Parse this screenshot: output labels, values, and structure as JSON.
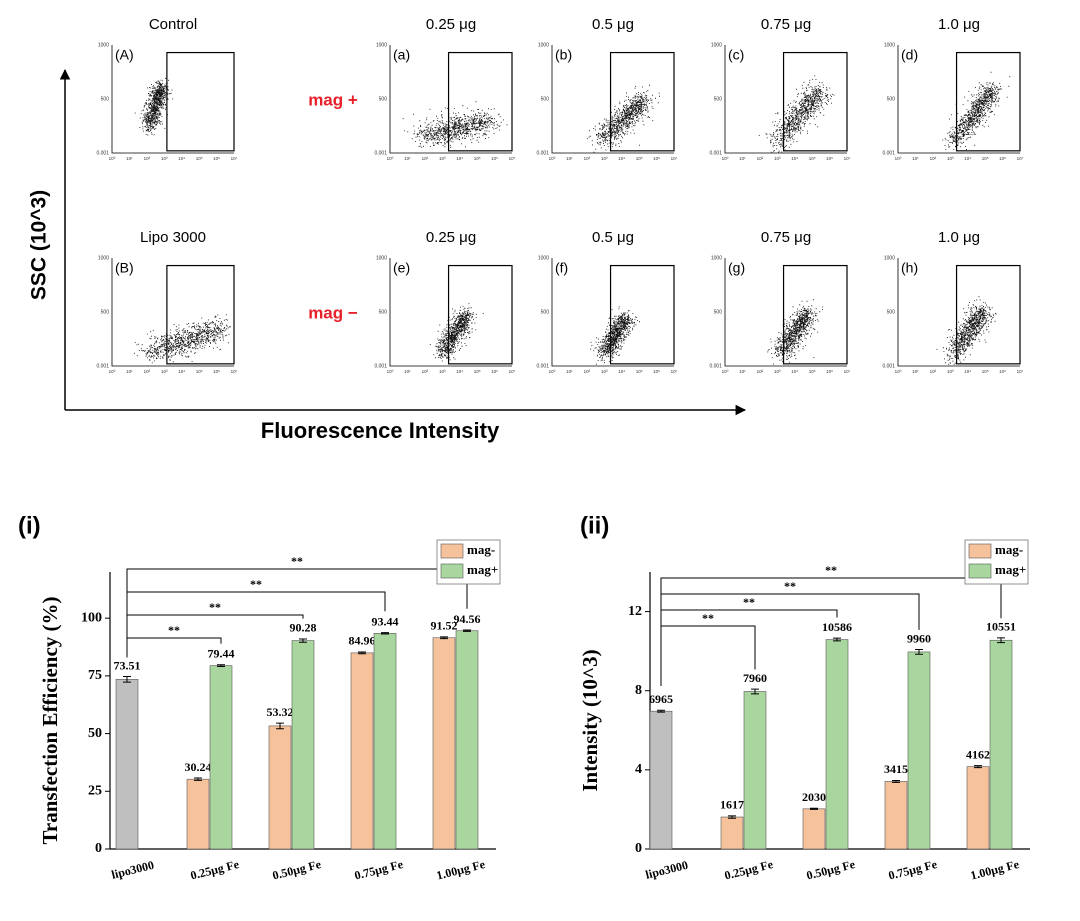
{
  "flow": {
    "y_axis_label": "SSC  (10^3)",
    "x_axis_label": "Fluorescence Intensity",
    "yticks": [
      "1000",
      "500",
      "0.001"
    ],
    "xticks": [
      "10⁰",
      "10¹",
      "10²",
      "10³",
      "10⁴",
      "10⁵",
      "10⁶",
      "10⁷"
    ],
    "rows": [
      {
        "label": "mag +",
        "panels": [
          {
            "title": "Control",
            "tag": "(A)"
          },
          {
            "title": "0.25 μg",
            "tag": "(a)"
          },
          {
            "title": "0.5 μg",
            "tag": "(b)"
          },
          {
            "title": "0.75 μg",
            "tag": "(c)"
          },
          {
            "title": "1.0 μg",
            "tag": "(d)"
          }
        ]
      },
      {
        "label": "mag −",
        "panels": [
          {
            "title": "Lipo 3000",
            "tag": "(B)"
          },
          {
            "title": "0.25 μg",
            "tag": "(e)"
          },
          {
            "title": "0.5 μg",
            "tag": "(f)"
          },
          {
            "title": "0.75 μg",
            "tag": "(g)"
          },
          {
            "title": "1.0 μg",
            "tag": "(h)"
          }
        ]
      }
    ]
  },
  "chart_data": [
    {
      "type": "bar",
      "panel_label": "(i)",
      "y_label": "Transfection Efficiency (%)",
      "categories": [
        "lipo3000",
        "0.25μg Fe",
        "0.50μg Fe",
        "0.75μg Fe",
        "1.00μg Fe"
      ],
      "series": [
        {
          "color": "#bfbfbf",
          "values": [
            73.51,
            null,
            null,
            null,
            null
          ],
          "errors": [
            1.2,
            null,
            null,
            null,
            null
          ]
        },
        {
          "name": "mag-",
          "color": "#f6c29c",
          "values": [
            null,
            30.24,
            53.32,
            84.96,
            91.52
          ],
          "errors": [
            null,
            0.5,
            1.2,
            0.4,
            0.4
          ]
        },
        {
          "name": "mag+",
          "color": "#a9d69f",
          "values": [
            null,
            79.44,
            90.28,
            93.44,
            94.56
          ],
          "errors": [
            null,
            0.4,
            0.7,
            0.3,
            0.3
          ]
        }
      ],
      "ylim": [
        0,
        120
      ],
      "yticks": [
        0,
        25,
        50,
        75,
        100
      ],
      "legend": "top-right",
      "significance": [
        {
          "from": 0,
          "to": 1,
          "label": "**"
        },
        {
          "from": 0,
          "to": 2,
          "label": "**"
        },
        {
          "from": 0,
          "to": 3,
          "label": "**"
        },
        {
          "from": 0,
          "to": 4,
          "label": "**"
        }
      ]
    },
    {
      "type": "bar",
      "panel_label": "(ii)",
      "y_label": "Intensity (10^3)",
      "categories": [
        "lipo3000",
        "0.25μg Fe",
        "0.50μg Fe",
        "0.75μg Fe",
        "1.00μg Fe"
      ],
      "series": [
        {
          "color": "#bfbfbf",
          "values": [
            6.965,
            null,
            null,
            null,
            null
          ],
          "errors": [
            0.05,
            null,
            null,
            null,
            null
          ],
          "value_labels": [
            "6965",
            null,
            null,
            null,
            null
          ]
        },
        {
          "name": "mag-",
          "color": "#f6c29c",
          "values": [
            null,
            1.617,
            2.03,
            3.415,
            4.162
          ],
          "errors": [
            null,
            0.06,
            0.03,
            0.05,
            0.05
          ],
          "value_labels": [
            null,
            "1617",
            "2030",
            "3415",
            "4162"
          ]
        },
        {
          "name": "mag+",
          "color": "#a9d69f",
          "values": [
            null,
            7.96,
            10.586,
            9.96,
            10.551
          ],
          "errors": [
            null,
            0.12,
            0.07,
            0.12,
            0.12
          ],
          "value_labels": [
            null,
            "7960",
            "10586",
            "9960",
            "10551"
          ]
        }
      ],
      "ylim": [
        0,
        14
      ],
      "yticks": [
        0,
        4,
        8,
        12
      ],
      "legend": "top-right",
      "significance": [
        {
          "from": 0,
          "to": 1,
          "label": "**"
        },
        {
          "from": 0,
          "to": 2,
          "label": "**"
        },
        {
          "from": 0,
          "to": 3,
          "label": "**"
        },
        {
          "from": 0,
          "to": 4,
          "label": "**"
        }
      ]
    }
  ]
}
